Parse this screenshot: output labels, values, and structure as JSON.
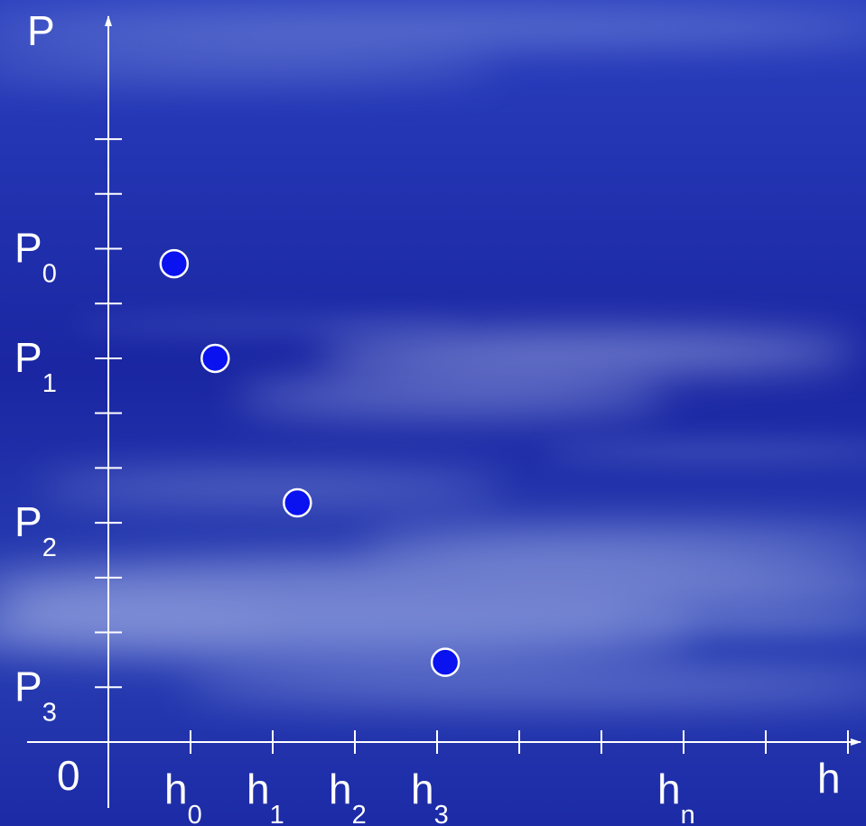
{
  "chart_data": {
    "type": "scatter",
    "title": "",
    "xlabel": "h",
    "ylabel": "P",
    "origin_label": "0",
    "x_labels": [
      {
        "base": "h",
        "sub": "0"
      },
      {
        "base": "h",
        "sub": "1"
      },
      {
        "base": "h",
        "sub": "2"
      },
      {
        "base": "h",
        "sub": "3"
      },
      {
        "base": "h",
        "sub": "n"
      }
    ],
    "y_labels": [
      {
        "base": "P",
        "sub": "0"
      },
      {
        "base": "P",
        "sub": "1"
      },
      {
        "base": "P",
        "sub": "2"
      },
      {
        "base": "P",
        "sub": "3"
      }
    ],
    "points": [
      {
        "x": 0.8,
        "y": 9.6
      },
      {
        "x": 1.3,
        "y": 7.7
      },
      {
        "x": 2.3,
        "y": 4.8
      },
      {
        "x": 4.1,
        "y": 1.6
      }
    ],
    "x_ticks": [
      1,
      2,
      3,
      4,
      5,
      6,
      7,
      8,
      9
    ],
    "y_ticks": [
      1.1,
      2.2,
      3.3,
      4.4,
      5.5,
      6.6,
      7.7,
      8.8,
      9.9,
      11.0,
      12.1
    ],
    "x_label_values": [
      1,
      2,
      3,
      4,
      7
    ],
    "y_label_values": [
      9.9,
      7.7,
      4.4,
      1.1
    ],
    "xlim": [
      0,
      9.6
    ],
    "ylim": [
      0,
      14
    ],
    "grid": false,
    "colors": {
      "background": "#1a2aa8",
      "axis": "#ffffff",
      "point_fill": "#0a12f0",
      "point_stroke": "#ffffff",
      "text": "#ffffff"
    }
  }
}
